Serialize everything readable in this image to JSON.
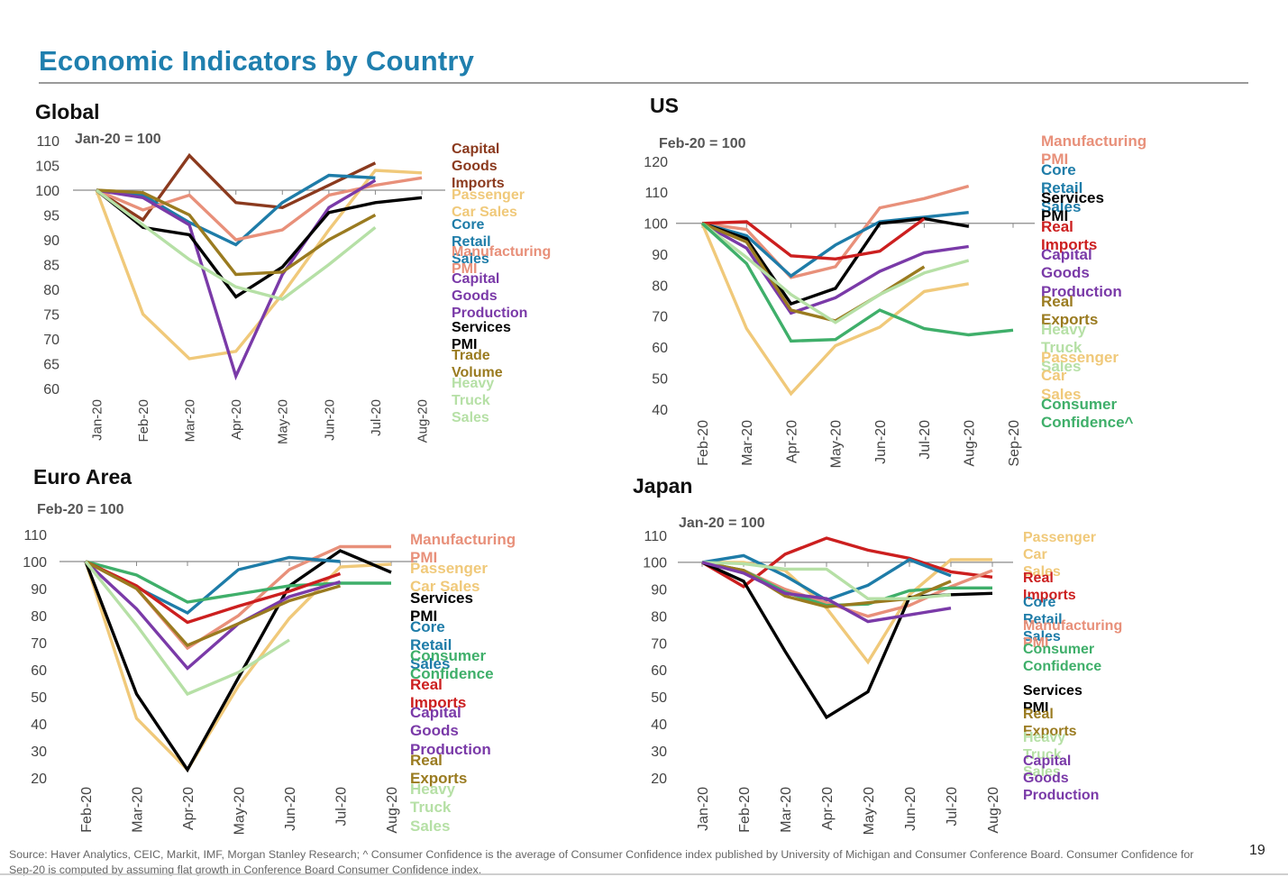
{
  "page": {
    "title": "Economic Indicators by Country",
    "source": "Source: Haver Analytics, CEIC, Markit, IMF, Morgan Stanley Research; ^ Consumer Confidence is the average of Consumer Confidence index published by University of Michigan and Consumer Conference Board. Consumer Confidence for Sep-20 is  computed by assuming flat growth in Conference Board Consumer Confidence index.",
    "page_number": "19"
  },
  "chart_data": [
    {
      "type": "line",
      "title": "Global",
      "note": "Jan-20 = 100",
      "categories": [
        "Jan-20",
        "Feb-20",
        "Mar-20",
        "Apr-20",
        "May-20",
        "Jun-20",
        "Jul-20",
        "Aug-20"
      ],
      "ylim": [
        60,
        110
      ],
      "yticks": [
        60,
        65,
        70,
        75,
        80,
        85,
        90,
        95,
        100,
        105,
        110
      ],
      "baseline": 100,
      "grid": false,
      "legend": "right",
      "series": [
        {
          "name": "Capital Goods\nImports",
          "color": "#8b3a1e",
          "values": [
            100,
            94,
            107,
            97.5,
            96.5,
            101,
            105.5,
            null
          ]
        },
        {
          "name": "Passenger Car Sales",
          "color": "#f0c97a",
          "values": [
            100,
            75,
            66,
            67.5,
            79,
            92,
            104,
            103.5
          ]
        },
        {
          "name": "Core Retail Sales",
          "color": "#1e7ca8",
          "values": [
            100,
            99,
            93.5,
            89,
            97.5,
            103,
            102.5,
            null
          ]
        },
        {
          "name": "Manufacturing PMI",
          "color": "#e8907a",
          "values": [
            100,
            96,
            99,
            90,
            92,
            99,
            101,
            102.5
          ]
        },
        {
          "name": "Capital Goods\nProduction",
          "color": "#7a3aa8",
          "values": [
            100,
            98.5,
            93,
            62.5,
            83,
            96.5,
            102,
            null
          ]
        },
        {
          "name": "Services PMI",
          "color": "#000000",
          "values": [
            100,
            92.5,
            91,
            78.5,
            84.5,
            95.5,
            97.5,
            98.5
          ]
        },
        {
          "name": "Trade Volume",
          "color": "#9a7b20",
          "values": [
            100,
            99.5,
            95,
            83,
            83.5,
            90,
            95,
            null
          ]
        },
        {
          "name": "Heavy Truck Sales",
          "color": "#b6e0a6",
          "values": [
            100,
            93,
            86,
            80.5,
            78,
            85,
            92.5,
            null
          ]
        }
      ]
    },
    {
      "type": "line",
      "title": "US",
      "note": "Feb-20 = 100",
      "categories": [
        "Feb-20",
        "Mar-20",
        "Apr-20",
        "May-20",
        "Jun-20",
        "Jul-20",
        "Aug-20",
        "Sep-20"
      ],
      "ylim": [
        40,
        120
      ],
      "yticks": [
        40,
        50,
        60,
        70,
        80,
        90,
        100,
        110,
        120
      ],
      "baseline": 100,
      "grid": false,
      "legend": "right",
      "series": [
        {
          "name": "Manufacturing PMI",
          "color": "#e8907a",
          "values": [
            100,
            98,
            82.5,
            86,
            105,
            108,
            112,
            null
          ]
        },
        {
          "name": "Core Retail Sales",
          "color": "#1e7ca8",
          "values": [
            100,
            96,
            83,
            93,
            100.5,
            102,
            103.5,
            null
          ]
        },
        {
          "name": "Services PMI",
          "color": "#000000",
          "values": [
            100,
            95,
            74,
            79,
            100,
            101.5,
            99,
            null
          ]
        },
        {
          "name": "Real Imports",
          "color": "#cc1f1f",
          "values": [
            100,
            100.5,
            89.5,
            88.5,
            91,
            101.5,
            null,
            null
          ]
        },
        {
          "name": "Capital Goods\nProduction",
          "color": "#7a3aa8",
          "values": [
            100,
            92,
            71,
            76,
            84.5,
            90.5,
            92.5,
            null
          ]
        },
        {
          "name": "Real Exports",
          "color": "#9a7b20",
          "values": [
            100,
            94,
            72,
            68.5,
            77,
            86,
            null,
            null
          ]
        },
        {
          "name": "Heavy Truck Sales",
          "color": "#b6e0a6",
          "values": [
            100,
            89,
            77,
            68,
            77,
            84,
            88,
            null
          ]
        },
        {
          "name": "Passenger Car\nSales",
          "color": "#f0c97a",
          "values": [
            100,
            66,
            45,
            60.5,
            66.5,
            78,
            80.5,
            null
          ]
        },
        {
          "name": "Consumer\nConfidence^",
          "color": "#3faf6a",
          "values": [
            100,
            87,
            62,
            62.5,
            72,
            66,
            64,
            65.5
          ]
        }
      ]
    },
    {
      "type": "line",
      "title": "Euro Area",
      "note": "Feb-20 = 100",
      "categories": [
        "Feb-20",
        "Mar-20",
        "Apr-20",
        "May-20",
        "Jun-20",
        "Jul-20",
        "Aug-20"
      ],
      "ylim": [
        20,
        110
      ],
      "yticks": [
        20,
        30,
        40,
        50,
        60,
        70,
        80,
        90,
        100,
        110
      ],
      "baseline": 100,
      "grid": false,
      "legend": "right",
      "series": [
        {
          "name": "Manufacturing PMI",
          "color": "#e8907a",
          "values": [
            100,
            90,
            68,
            80,
            97,
            105.5,
            105.5
          ]
        },
        {
          "name": "Passenger Car Sales",
          "color": "#f0c97a",
          "values": [
            100,
            42,
            23,
            54,
            79,
            98,
            99
          ]
        },
        {
          "name": "Services PMI",
          "color": "#000000",
          "values": [
            100,
            51,
            23,
            57,
            91,
            104,
            96
          ]
        },
        {
          "name": "Core Retail Sales",
          "color": "#1e7ca8",
          "values": [
            100,
            90.5,
            81,
            97,
            101.5,
            100,
            null
          ]
        },
        {
          "name": "Consumer Confidence",
          "color": "#3faf6a",
          "values": [
            100,
            95,
            85,
            88,
            91,
            92,
            92
          ]
        },
        {
          "name": "Real Imports",
          "color": "#cc1f1f",
          "values": [
            100,
            91,
            77.5,
            83.5,
            89,
            95.5,
            null
          ]
        },
        {
          "name": "Capital Goods\nProduction",
          "color": "#7a3aa8",
          "values": [
            100,
            82.5,
            60.5,
            77,
            87,
            92.5,
            null
          ]
        },
        {
          "name": "Real Exports",
          "color": "#9a7b20",
          "values": [
            100,
            90,
            69,
            77,
            85.5,
            91,
            null
          ]
        },
        {
          "name": "Heavy Truck Sales",
          "color": "#b6e0a6",
          "values": [
            100,
            76.5,
            51,
            59,
            71,
            null,
            null
          ]
        }
      ]
    },
    {
      "type": "line",
      "title": "Japan",
      "note": "Jan-20 = 100",
      "categories": [
        "Jan-20",
        "Feb-20",
        "Mar-20",
        "Apr-20",
        "May-20",
        "Jun-20",
        "Jul-20",
        "Aug-20"
      ],
      "ylim": [
        20,
        110
      ],
      "yticks": [
        20,
        30,
        40,
        50,
        60,
        70,
        80,
        90,
        100,
        110
      ],
      "baseline": 100,
      "grid": false,
      "legend": "right",
      "series": [
        {
          "name": "Passenger Car\nSales",
          "color": "#f0c97a",
          "values": [
            100,
            100,
            97,
            83,
            63,
            88,
            101,
            101
          ]
        },
        {
          "name": "Real Imports",
          "color": "#cc1f1f",
          "values": [
            100,
            91,
            103,
            109,
            104.5,
            101.5,
            96.5,
            94.5
          ]
        },
        {
          "name": "Core Retail Sales",
          "color": "#1e7ca8",
          "values": [
            100,
            102.5,
            95,
            86,
            91.5,
            101,
            95,
            null
          ]
        },
        {
          "name": "Manufacturing PMI",
          "color": "#e8907a",
          "values": [
            100,
            97,
            90,
            85,
            80,
            84,
            91,
            97
          ]
        },
        {
          "name": "Consumer\nConfidence",
          "color": "#3faf6a",
          "values": [
            100,
            97,
            89,
            84,
            84.5,
            89.5,
            90.5,
            90.5
          ]
        },
        {
          "name": "Services PMI",
          "color": "#000000",
          "values": [
            100,
            93,
            67,
            42.5,
            52,
            87,
            88,
            88.5
          ]
        },
        {
          "name": "Real Exports",
          "color": "#9a7b20",
          "values": [
            100,
            97,
            87.5,
            83.5,
            85,
            86.5,
            93,
            null
          ]
        },
        {
          "name": "Heavy Truck Sales",
          "color": "#b6e0a6",
          "values": [
            100,
            99.5,
            97.5,
            97.5,
            86.5,
            86.5,
            88,
            null
          ]
        },
        {
          "name": "Capital Goods\nProduction",
          "color": "#7a3aa8",
          "values": [
            100,
            96,
            88.5,
            86.5,
            78,
            80.5,
            83,
            null
          ]
        }
      ]
    }
  ]
}
